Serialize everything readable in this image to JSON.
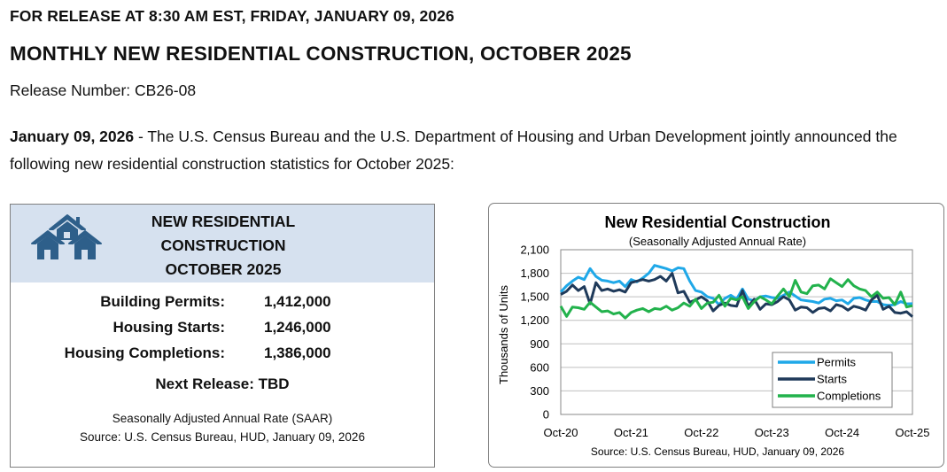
{
  "header": {
    "release_line": "FOR RELEASE AT 8:30 AM EST, FRIDAY, JANUARY 09, 2026",
    "title": "MONTHLY NEW RESIDENTIAL CONSTRUCTION, OCTOBER 2025",
    "release_number": "Release Number: CB26-08"
  },
  "intro": {
    "date": "January 09, 2026",
    "text": " - The U.S. Census Bureau and the U.S. Department of Housing and Urban Development jointly announced the following new residential construction statistics for October 2025:"
  },
  "summary": {
    "icon": "houses-icon",
    "title_line1": "NEW RESIDENTIAL",
    "title_line2": "CONSTRUCTION",
    "title_line3": "OCTOBER 2025",
    "stats": [
      {
        "label": "Building Permits:",
        "value": "1,412,000"
      },
      {
        "label": "Housing Starts:",
        "value": "1,246,000"
      },
      {
        "label": "Housing Completions:",
        "value": "1,386,000"
      }
    ],
    "next_release": "Next Release:  TBD",
    "saar_note": "Seasonally Adjusted Annual Rate (SAAR)",
    "source": "Source:  U.S. Census Bureau, HUD, January 09, 2026"
  },
  "colors": {
    "header_bg": "#d6e1ef",
    "icon": "#2e5f8a",
    "permits": "#1fa8e8",
    "starts": "#1f3a5a",
    "completions": "#22b24c"
  },
  "chart_data": {
    "type": "line",
    "title": "New Residential Construction",
    "subtitle": "(Seasonally Adjusted Annual Rate)",
    "ylabel": "Thousands of Units",
    "xlabel": "",
    "ylim": [
      0,
      2100
    ],
    "yticks": [
      0,
      300,
      600,
      900,
      1200,
      1500,
      1800,
      2100
    ],
    "ytick_labels": [
      "0",
      "300",
      "600",
      "900",
      "1,200",
      "1,500",
      "1,800",
      "2,100"
    ],
    "xtick_labels": [
      "Oct-20",
      "Oct-21",
      "Oct-22",
      "Oct-23",
      "Oct-24",
      "Oct-25"
    ],
    "xtick_index": [
      0,
      12,
      24,
      36,
      48,
      60
    ],
    "grid": true,
    "legend_position": "bottom-right",
    "source": "Source:  U.S. Census Bureau, HUD, January 09, 2026",
    "series": [
      {
        "name": "Permits",
        "values": [
          1560,
          1640,
          1700,
          1750,
          1720,
          1860,
          1760,
          1710,
          1700,
          1680,
          1700,
          1630,
          1720,
          1690,
          1740,
          1800,
          1900,
          1880,
          1860,
          1830,
          1870,
          1860,
          1700,
          1580,
          1560,
          1500,
          1480,
          1400,
          1480,
          1520,
          1470,
          1600,
          1470,
          1450,
          1500,
          1510,
          1490,
          1480,
          1520,
          1560,
          1510,
          1460,
          1450,
          1440,
          1420,
          1470,
          1480,
          1450,
          1460,
          1410,
          1480,
          1490,
          1460,
          1440,
          1440,
          1400,
          1390,
          1400,
          1440,
          1410,
          1412
        ]
      },
      {
        "name": "Starts",
        "values": [
          1530,
          1570,
          1650,
          1580,
          1630,
          1410,
          1680,
          1580,
          1600,
          1570,
          1590,
          1560,
          1680,
          1700,
          1720,
          1700,
          1720,
          1760,
          1700,
          1800,
          1550,
          1570,
          1430,
          1460,
          1500,
          1450,
          1320,
          1390,
          1420,
          1390,
          1380,
          1580,
          1380,
          1470,
          1340,
          1410,
          1400,
          1440,
          1500,
          1460,
          1330,
          1370,
          1360,
          1300,
          1350,
          1360,
          1320,
          1400,
          1380,
          1330,
          1380,
          1360,
          1330,
          1460,
          1520,
          1340,
          1380,
          1300,
          1290,
          1310,
          1246
        ]
      },
      {
        "name": "Completions",
        "values": [
          1380,
          1250,
          1370,
          1360,
          1340,
          1430,
          1370,
          1310,
          1320,
          1280,
          1300,
          1230,
          1300,
          1330,
          1350,
          1310,
          1350,
          1340,
          1380,
          1330,
          1360,
          1420,
          1380,
          1470,
          1350,
          1420,
          1430,
          1520,
          1380,
          1480,
          1460,
          1500,
          1350,
          1440,
          1500,
          1460,
          1410,
          1510,
          1600,
          1500,
          1710,
          1560,
          1540,
          1640,
          1650,
          1600,
          1730,
          1680,
          1630,
          1720,
          1640,
          1600,
          1580,
          1500,
          1560,
          1480,
          1490,
          1400,
          1560,
          1370,
          1386
        ]
      }
    ]
  }
}
